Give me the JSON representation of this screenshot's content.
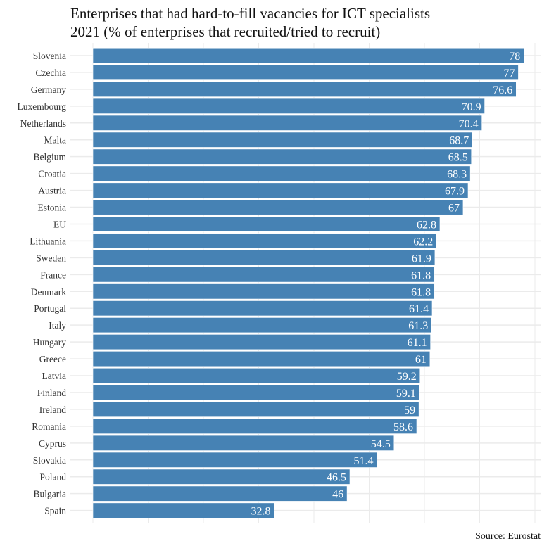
{
  "chart_data": {
    "type": "bar",
    "orientation": "horizontal",
    "title": "Enterprises that had hard-to-fill vacancies for ICT specialists",
    "subtitle": "2021 (% of enterprises that recruited/tried to recruit)",
    "xlabel": "",
    "ylabel": "",
    "xlim": [
      0,
      80
    ],
    "x_gridlines": [
      0,
      10,
      20,
      30,
      40,
      50,
      60,
      70,
      80
    ],
    "x_tick_labels_shown": false,
    "grid": true,
    "bar_color": "#4682b4",
    "label_color": "#ffffff",
    "categories": [
      "Slovenia",
      "Czechia",
      "Germany",
      "Luxembourg",
      "Netherlands",
      "Malta",
      "Belgium",
      "Croatia",
      "Austria",
      "Estonia",
      "EU",
      "Lithuania",
      "Sweden",
      "France",
      "Denmark",
      "Portugal",
      "Italy",
      "Hungary",
      "Greece",
      "Latvia",
      "Finland",
      "Ireland",
      "Romania",
      "Cyprus",
      "Slovakia",
      "Poland",
      "Bulgaria",
      "Spain"
    ],
    "values": [
      78,
      77,
      76.6,
      70.9,
      70.4,
      68.7,
      68.5,
      68.3,
      67.9,
      67,
      62.8,
      62.2,
      61.9,
      61.8,
      61.8,
      61.4,
      61.3,
      61.1,
      61,
      59.2,
      59.1,
      59,
      58.6,
      54.5,
      51.4,
      46.5,
      46,
      32.8
    ],
    "value_labels": [
      "78",
      "77",
      "76.6",
      "70.9",
      "70.4",
      "68.7",
      "68.5",
      "68.3",
      "67.9",
      "67",
      "62.8",
      "62.2",
      "61.9",
      "61.8",
      "61.8",
      "61.4",
      "61.3",
      "61.1",
      "61",
      "59.2",
      "59.1",
      "59",
      "58.6",
      "54.5",
      "51.4",
      "46.5",
      "46",
      "32.8"
    ],
    "source": "Source: Eurostat"
  }
}
